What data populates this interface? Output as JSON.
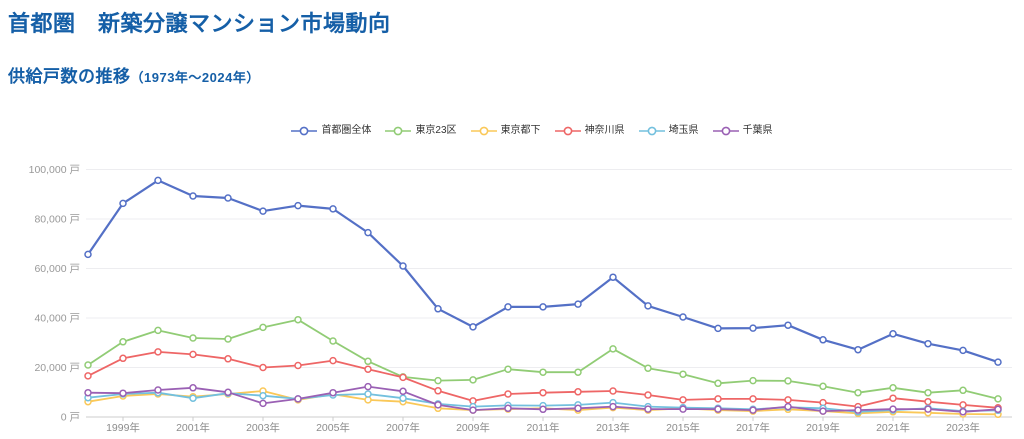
{
  "page": {
    "title": "首都圏　新築分譲マンション市場動向",
    "section": {
      "title": "供給戸数の推移",
      "period": "（1973年～2024年）"
    }
  },
  "colors": {
    "heading": "#155fa7",
    "axis_label": "#999999",
    "x_label": "#8c8c8c",
    "grid_line": "#ededf0",
    "axis_line": "#cccccc",
    "legend_text": "#333333",
    "background": "#ffffff"
  },
  "chart_data": {
    "type": "line",
    "title": "供給戸数の推移（1973年～2024年）",
    "unit": "戸",
    "legend_position": "top-center",
    "grid": "horizontal-only",
    "marker": "hollow-circle",
    "ylim": [
      0,
      100000
    ],
    "y_ticks": [
      {
        "value": 0,
        "label": "0 戸"
      },
      {
        "value": 20000,
        "label": "20,000 戸"
      },
      {
        "value": 40000,
        "label": "40,000 戸"
      },
      {
        "value": 60000,
        "label": "60,000 戸"
      },
      {
        "value": 80000,
        "label": "80,000 戸"
      },
      {
        "value": 100000,
        "label": "100,000 戸"
      }
    ],
    "x_years": [
      1998,
      1999,
      2000,
      2001,
      2002,
      2003,
      2004,
      2005,
      2006,
      2007,
      2008,
      2009,
      2010,
      2011,
      2012,
      2013,
      2014,
      2015,
      2016,
      2017,
      2018,
      2019,
      2020,
      2021,
      2022,
      2023,
      2024
    ],
    "x_tick_labels": [
      "1999年",
      "2001年",
      "2003年",
      "2005年",
      "2007年",
      "2009年",
      "2011年",
      "2013年",
      "2015年",
      "2017年",
      "2019年",
      "2021年",
      "2023年"
    ],
    "series": [
      {
        "id": "shutoken-zentai",
        "name": "首都圏全体",
        "color": "#5470c6",
        "values": [
          65700,
          86300,
          95600,
          89300,
          88500,
          83200,
          85400,
          84100,
          74500,
          61000,
          43700,
          36400,
          44500,
          44500,
          45600,
          56500,
          44900,
          40400,
          35800,
          35900,
          37100,
          31200,
          27200,
          33600,
          29600,
          26900,
          22200
        ]
      },
      {
        "id": "tokyo-23ku",
        "name": "東京23区",
        "color": "#91cc75",
        "values": [
          21000,
          30400,
          35000,
          31900,
          31500,
          36200,
          39300,
          30700,
          22500,
          16200,
          14700,
          15000,
          19300,
          18100,
          18100,
          27500,
          19700,
          17300,
          13600,
          14700,
          14600,
          12400,
          9800,
          11800,
          9800,
          10800,
          7300
        ]
      },
      {
        "id": "tokyo-toka",
        "name": "東京都下",
        "color": "#fac858",
        "values": [
          6200,
          8500,
          9300,
          8200,
          9300,
          10500,
          6900,
          9200,
          6900,
          6200,
          3500,
          2800,
          3200,
          3500,
          2800,
          3800,
          2800,
          3500,
          2800,
          2400,
          3100,
          2400,
          1500,
          2100,
          1700,
          1200,
          1100
        ]
      },
      {
        "id": "kanagawa",
        "name": "神奈川県",
        "color": "#ee6666",
        "values": [
          16600,
          23700,
          26300,
          25300,
          23500,
          20000,
          20800,
          22800,
          19300,
          16000,
          10600,
          6500,
          9300,
          9800,
          10200,
          10500,
          8900,
          6900,
          7300,
          7300,
          6900,
          5800,
          4200,
          7600,
          6200,
          4900,
          3700
        ]
      },
      {
        "id": "saitama",
        "name": "埼玉県",
        "color": "#73c0de",
        "values": [
          7800,
          9300,
          9800,
          7600,
          9600,
          8600,
          7300,
          8900,
          9300,
          7600,
          5300,
          4200,
          4700,
          4600,
          4900,
          5800,
          4200,
          3800,
          3500,
          3100,
          3900,
          3500,
          2100,
          2800,
          3500,
          2400,
          2700
        ]
      },
      {
        "id": "chiba",
        "name": "千葉県",
        "color": "#9a60b4",
        "values": [
          9800,
          9600,
          10900,
          11800,
          10000,
          5500,
          7300,
          9800,
          12300,
          10400,
          4900,
          2800,
          3500,
          3100,
          3500,
          4200,
          3200,
          3200,
          3200,
          2800,
          4200,
          2400,
          2800,
          3200,
          3200,
          2100,
          3100
        ]
      }
    ]
  }
}
